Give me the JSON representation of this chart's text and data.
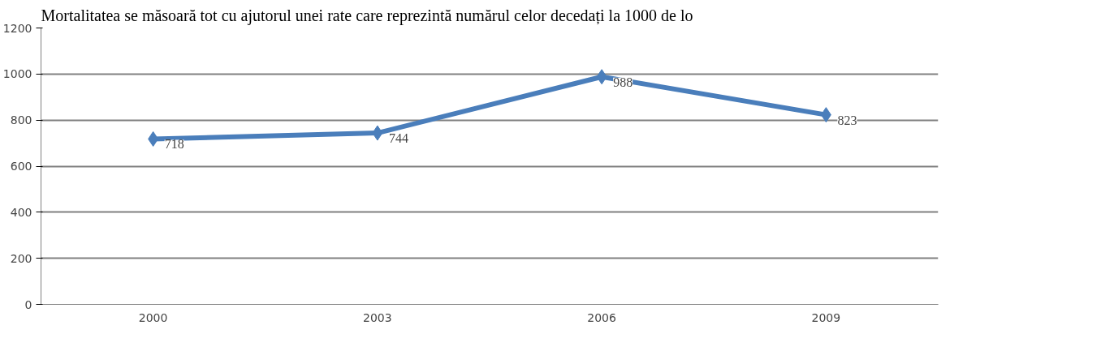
{
  "chart_data": {
    "type": "line",
    "title": "Mortalitatea se măsoară tot cu ajutorul unei rate care reprezintă numărul celor decedați la 1000 de lo",
    "categories": [
      "2000",
      "2003",
      "2006",
      "2009"
    ],
    "series": [
      {
        "color": "#4a7ebb",
        "values": [
          718,
          744,
          988,
          823
        ]
      }
    ],
    "ylim": [
      0,
      1200
    ],
    "yticks": [
      0,
      200,
      400,
      600,
      800,
      1000,
      1200
    ],
    "grid": "y",
    "marker": "diamond",
    "data_labels": true
  }
}
